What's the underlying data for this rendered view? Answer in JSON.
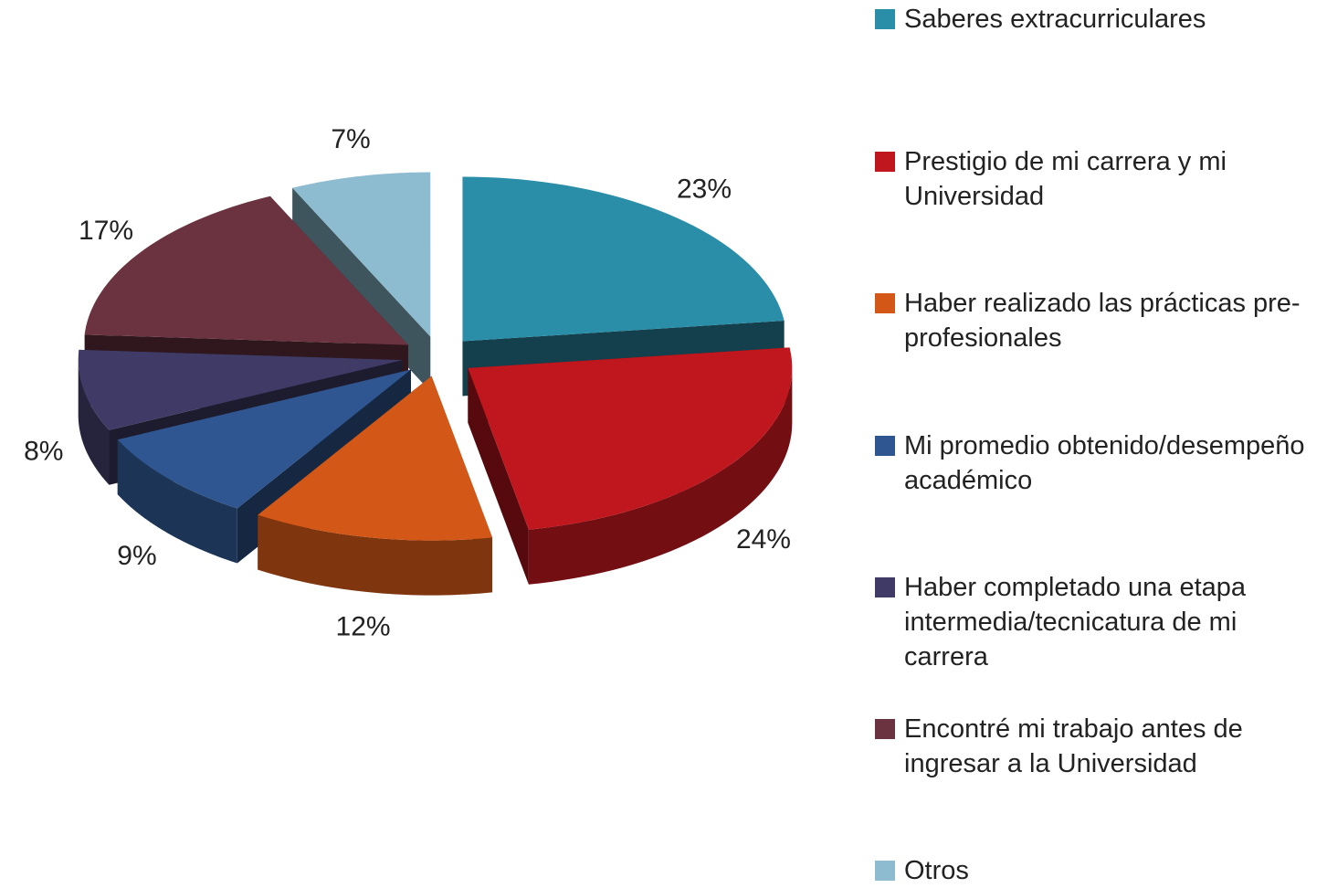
{
  "chart_data": {
    "type": "pie",
    "categories": [
      "Saberes extracurriculares",
      "Prestigio de mi carrera y mi Universidad",
      "Haber realizado las prácticas pre-profesionales",
      "Mi promedio obtenido/desempeño académico",
      "Haber completado una etapa intermedia/tecnicatura de mi carrera",
      "Encontré mi trabajo antes de ingresar a la Universidad",
      "Otros"
    ],
    "values": [
      23,
      24,
      12,
      9,
      8,
      17,
      7
    ],
    "value_labels": [
      "23%",
      "24%",
      "12%",
      "9%",
      "8%",
      "17%",
      "7%"
    ],
    "colors": [
      "#2a8ea8",
      "#c0171f",
      "#d35817",
      "#2f5690",
      "#403b66",
      "#6b3340",
      "#8dbcd0"
    ],
    "legend": "right"
  }
}
